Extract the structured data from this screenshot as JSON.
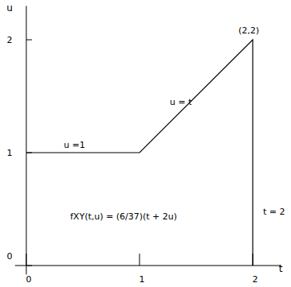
{
  "chart_data": {
    "type": "line",
    "x_label": "t",
    "y_label": "u",
    "x": [
      0,
      1,
      2,
      2
    ],
    "values": [
      1,
      1,
      2,
      0
    ],
    "color": "#000000",
    "xlim": [
      -0.1,
      2.25
    ],
    "ylim": [
      -0.08,
      2.3
    ],
    "xticks": [
      0,
      1,
      2
    ],
    "yticks": [
      0,
      1,
      2
    ],
    "grid": false,
    "annotations": [
      "u =1",
      "u = t",
      "(2,2)",
      "t = 2",
      "fXY(t,u) = (6/37)(t + 2u)"
    ]
  }
}
